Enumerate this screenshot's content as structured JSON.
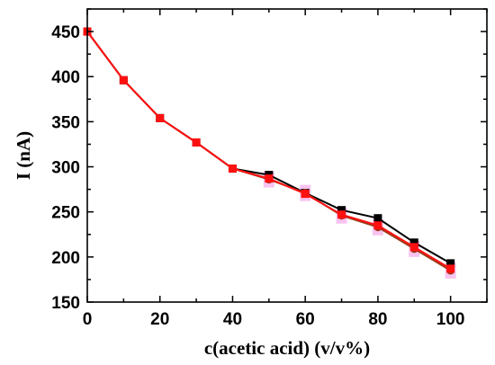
{
  "chart_data": {
    "type": "line",
    "title": "",
    "xlabel": "c(acetic acid) (v/v%)",
    "ylabel": "I (nA)",
    "xlim": [
      0,
      110
    ],
    "ylim": [
      150,
      475
    ],
    "x_ticks": [
      0,
      20,
      40,
      60,
      80,
      100
    ],
    "y_ticks": [
      150,
      200,
      250,
      300,
      350,
      400,
      450
    ],
    "x_tick_labels": [
      "0",
      "20",
      "40",
      "60",
      "80",
      "100"
    ],
    "y_tick_labels": [
      "150",
      "200",
      "250",
      "300",
      "350",
      "400",
      "450"
    ],
    "grid": false,
    "legend": "none",
    "series": [
      {
        "color": "#000000",
        "marker": "square",
        "x": [
          0,
          10,
          20,
          30,
          40,
          50,
          60,
          70,
          80,
          90,
          100
        ],
        "values": [
          450,
          396,
          354,
          327,
          298,
          291,
          271,
          252,
          243,
          216,
          193
        ]
      },
      {
        "color": "#9b3a1a",
        "marker": "circle",
        "x": [
          0,
          10,
          20,
          30,
          40,
          50,
          60,
          70,
          80,
          90,
          100
        ],
        "values": [
          450,
          396,
          354,
          327,
          298,
          286,
          271,
          246,
          233,
          209,
          185
        ]
      },
      {
        "color": "#ff1010",
        "marker": "square",
        "x": [
          0,
          10,
          20,
          30,
          40,
          50,
          60,
          70,
          80,
          90,
          100
        ],
        "values": [
          450,
          396,
          354,
          327,
          298,
          287,
          270,
          247,
          235,
          211,
          187
        ]
      }
    ]
  }
}
